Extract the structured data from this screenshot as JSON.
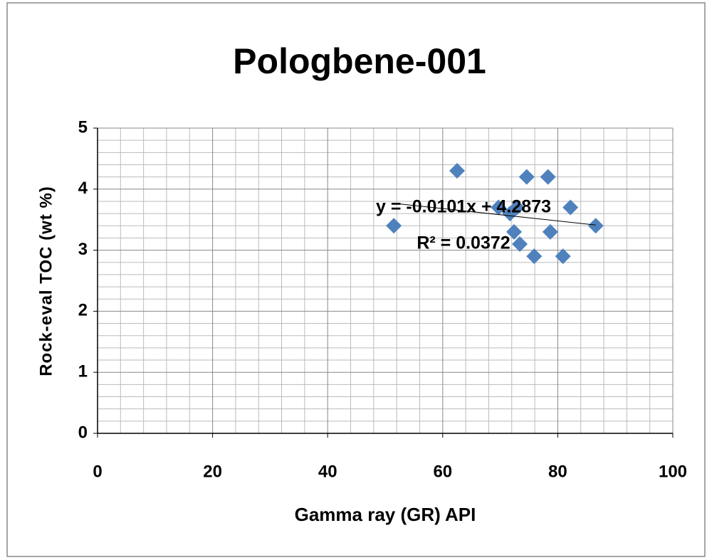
{
  "chart_data": {
    "type": "scatter",
    "title": "Pologbene-001",
    "x_label": "Gamma ray (GR) API",
    "y_label": "Rock-eval TOC (wt %)",
    "series": [
      {
        "name": "TOC",
        "color": "#4f81bd",
        "x": [
          51.5,
          62.5,
          69.7,
          71.7,
          72.4,
          72.9,
          73.4,
          74.6,
          75.9,
          78.3,
          78.7,
          80.9,
          82.2,
          86.6
        ],
        "values": [
          3.4,
          4.3,
          3.7,
          3.6,
          3.3,
          3.7,
          3.1,
          4.2,
          2.9,
          4.2,
          3.3,
          2.9,
          3.7,
          3.4
        ]
      }
    ],
    "trendline": {
      "slope": -0.0101,
      "intercept": 4.2873,
      "equation": "y = -0.0101x + 4.2873",
      "r2": "R² = 0.0372"
    },
    "xlim": [
      0,
      100
    ],
    "xticks": [
      0,
      20,
      40,
      60,
      80,
      100
    ],
    "ylim": [
      0,
      5
    ],
    "yticks": [
      0,
      1,
      2,
      3,
      4,
      5
    ],
    "grid": true
  }
}
